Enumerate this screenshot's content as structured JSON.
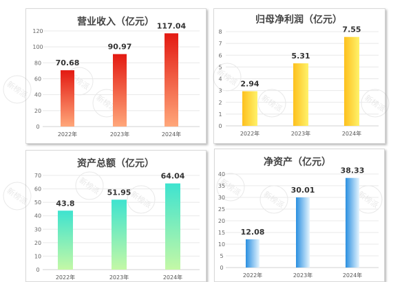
{
  "chart_data": [
    {
      "type": "bar",
      "title": "营业收入（亿元）",
      "categories": [
        "2022年",
        "2023年",
        "2024年"
      ],
      "values": [
        70.68,
        90.97,
        117.04
      ],
      "ylim": [
        0,
        120
      ],
      "yticks": [
        0,
        20,
        40,
        60,
        80,
        100,
        120
      ],
      "grid": true,
      "colors": {
        "top": "#e31a12",
        "bottom": "#ffa77a"
      },
      "gradient": "vertical"
    },
    {
      "type": "bar",
      "title": "归母净利润（亿元）",
      "categories": [
        "2022年",
        "2023年",
        "2024年"
      ],
      "values": [
        2.94,
        5.31,
        7.55
      ],
      "ylim": [
        0,
        8
      ],
      "yticks": [
        0,
        1,
        2,
        3,
        4,
        5,
        6,
        7,
        8
      ],
      "grid": true,
      "colors": {
        "left": "#fdc01e",
        "right": "#fff26a"
      },
      "gradient": "horizontal"
    },
    {
      "type": "bar",
      "title": "资产总额（亿元）",
      "categories": [
        "2022年",
        "2023年",
        "2024年"
      ],
      "values": [
        43.8,
        51.95,
        64.04
      ],
      "ylim": [
        0,
        70
      ],
      "yticks": [
        0,
        10,
        20,
        30,
        40,
        50,
        60,
        70
      ],
      "grid": true,
      "colors": {
        "top": "#3ee3cf",
        "bottom": "#c4f8a6"
      },
      "gradient": "vertical"
    },
    {
      "type": "bar",
      "title": "净资产（亿元）",
      "categories": [
        "2022年",
        "2023年",
        "2024年"
      ],
      "values": [
        12.08,
        30.01,
        38.33
      ],
      "ylim": [
        0,
        40
      ],
      "yticks": [
        0,
        5,
        10,
        15,
        20,
        25,
        30,
        35,
        40
      ],
      "grid": true,
      "colors": {
        "left": "#2a8fe0",
        "right": "#e4f5ff"
      },
      "gradient": "horizontal"
    }
  ],
  "watermark": "新榜派"
}
